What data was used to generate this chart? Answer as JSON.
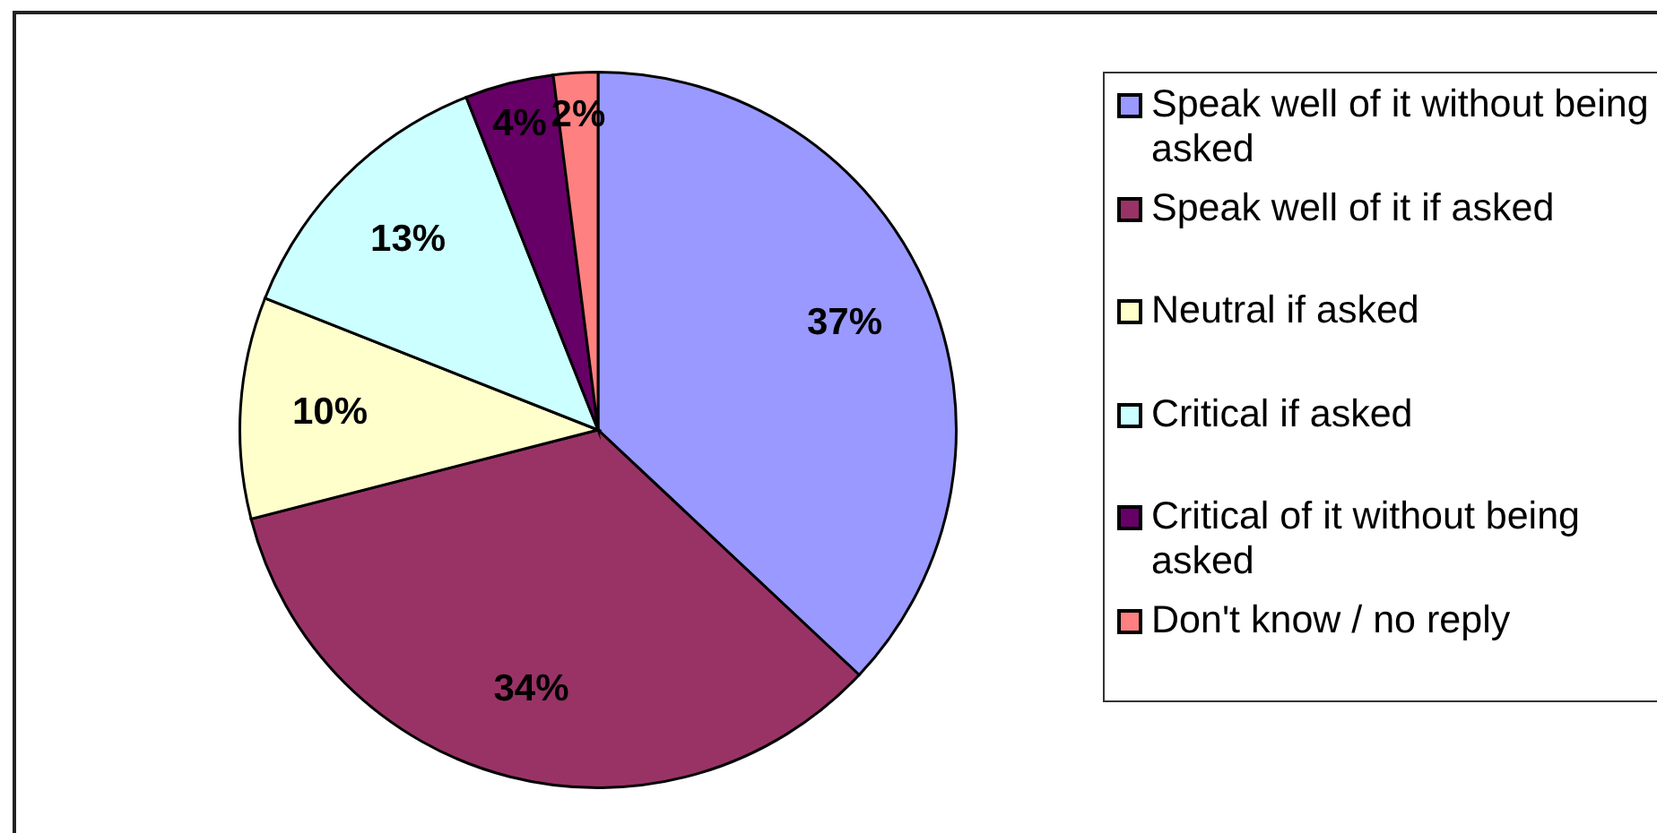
{
  "chart_data": {
    "type": "pie",
    "categories": [
      "Speak well of it without being asked",
      "Speak well of it if asked",
      "Neutral if asked",
      "Critical if asked",
      "Critical of it without being asked",
      "Don't know / no reply"
    ],
    "values": [
      37,
      34,
      10,
      13,
      4,
      2
    ],
    "colors": [
      "#9999ff",
      "#993366",
      "#ffffcc",
      "#ccffff",
      "#660066",
      "#ff8080"
    ],
    "value_labels": [
      "37%",
      "34%",
      "10%",
      "13%",
      "4%",
      "2%"
    ],
    "legend": "right"
  }
}
